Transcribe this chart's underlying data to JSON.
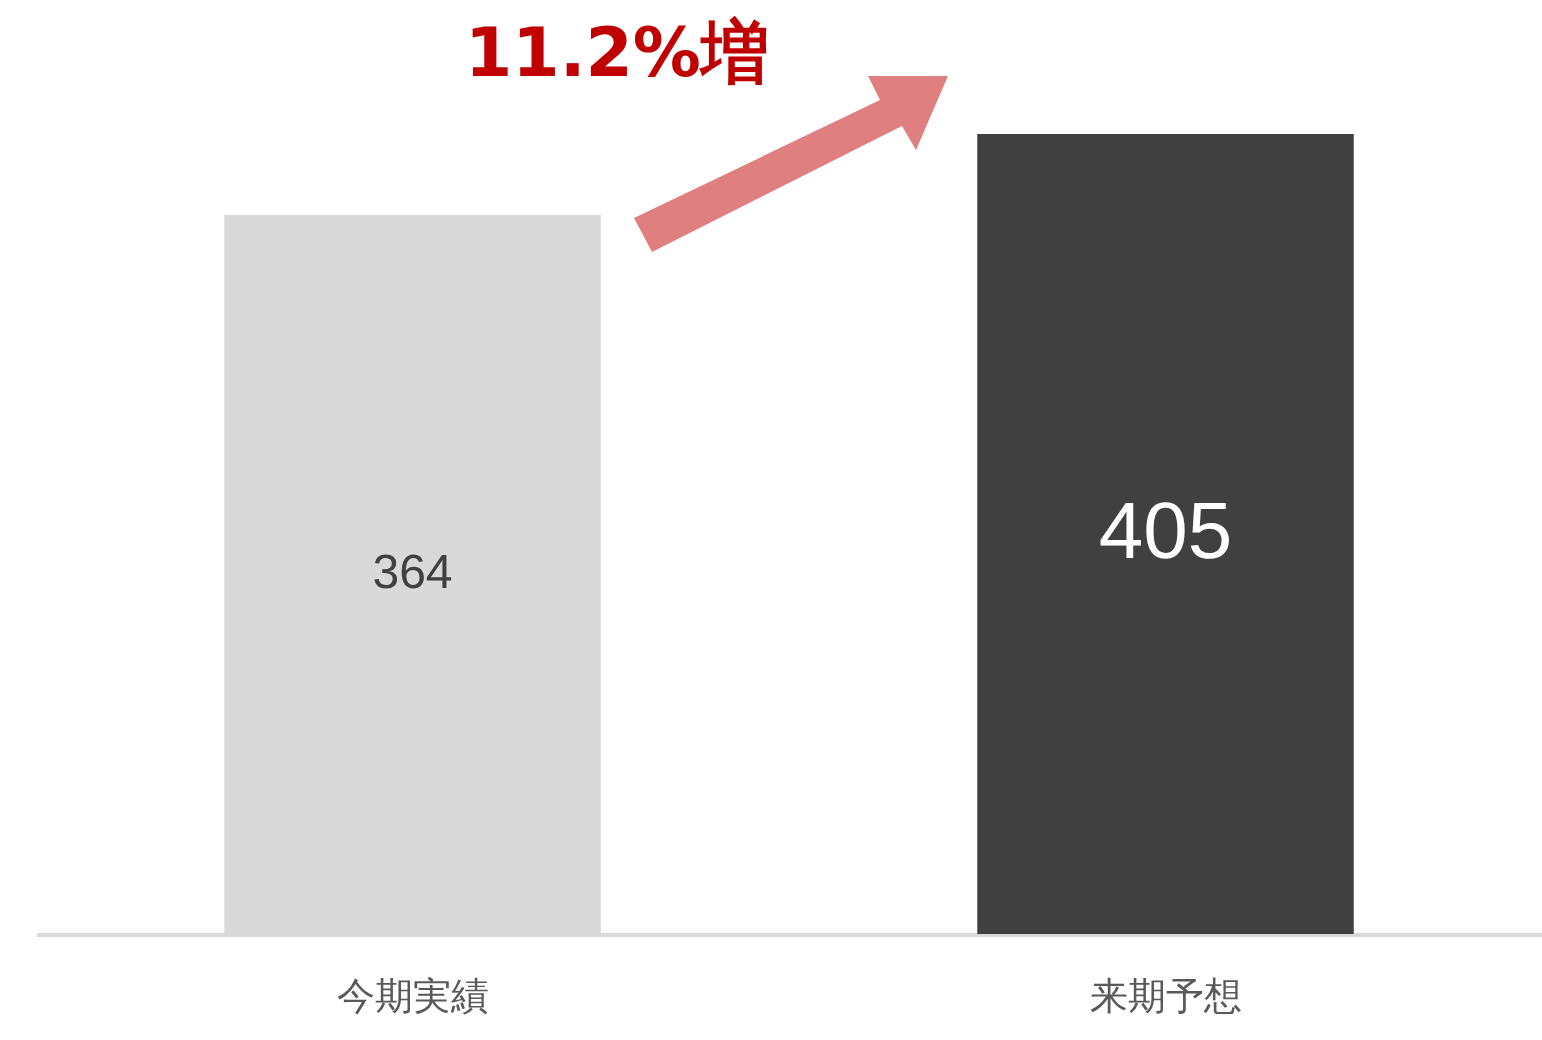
{
  "chart_data": {
    "type": "bar",
    "categories": [
      "今期実績",
      "来期予想"
    ],
    "values": [
      364,
      405
    ],
    "colors": [
      "#d9d9d9",
      "#404040"
    ],
    "data_labels": true,
    "annotations": [
      "11.2%増"
    ]
  }
}
